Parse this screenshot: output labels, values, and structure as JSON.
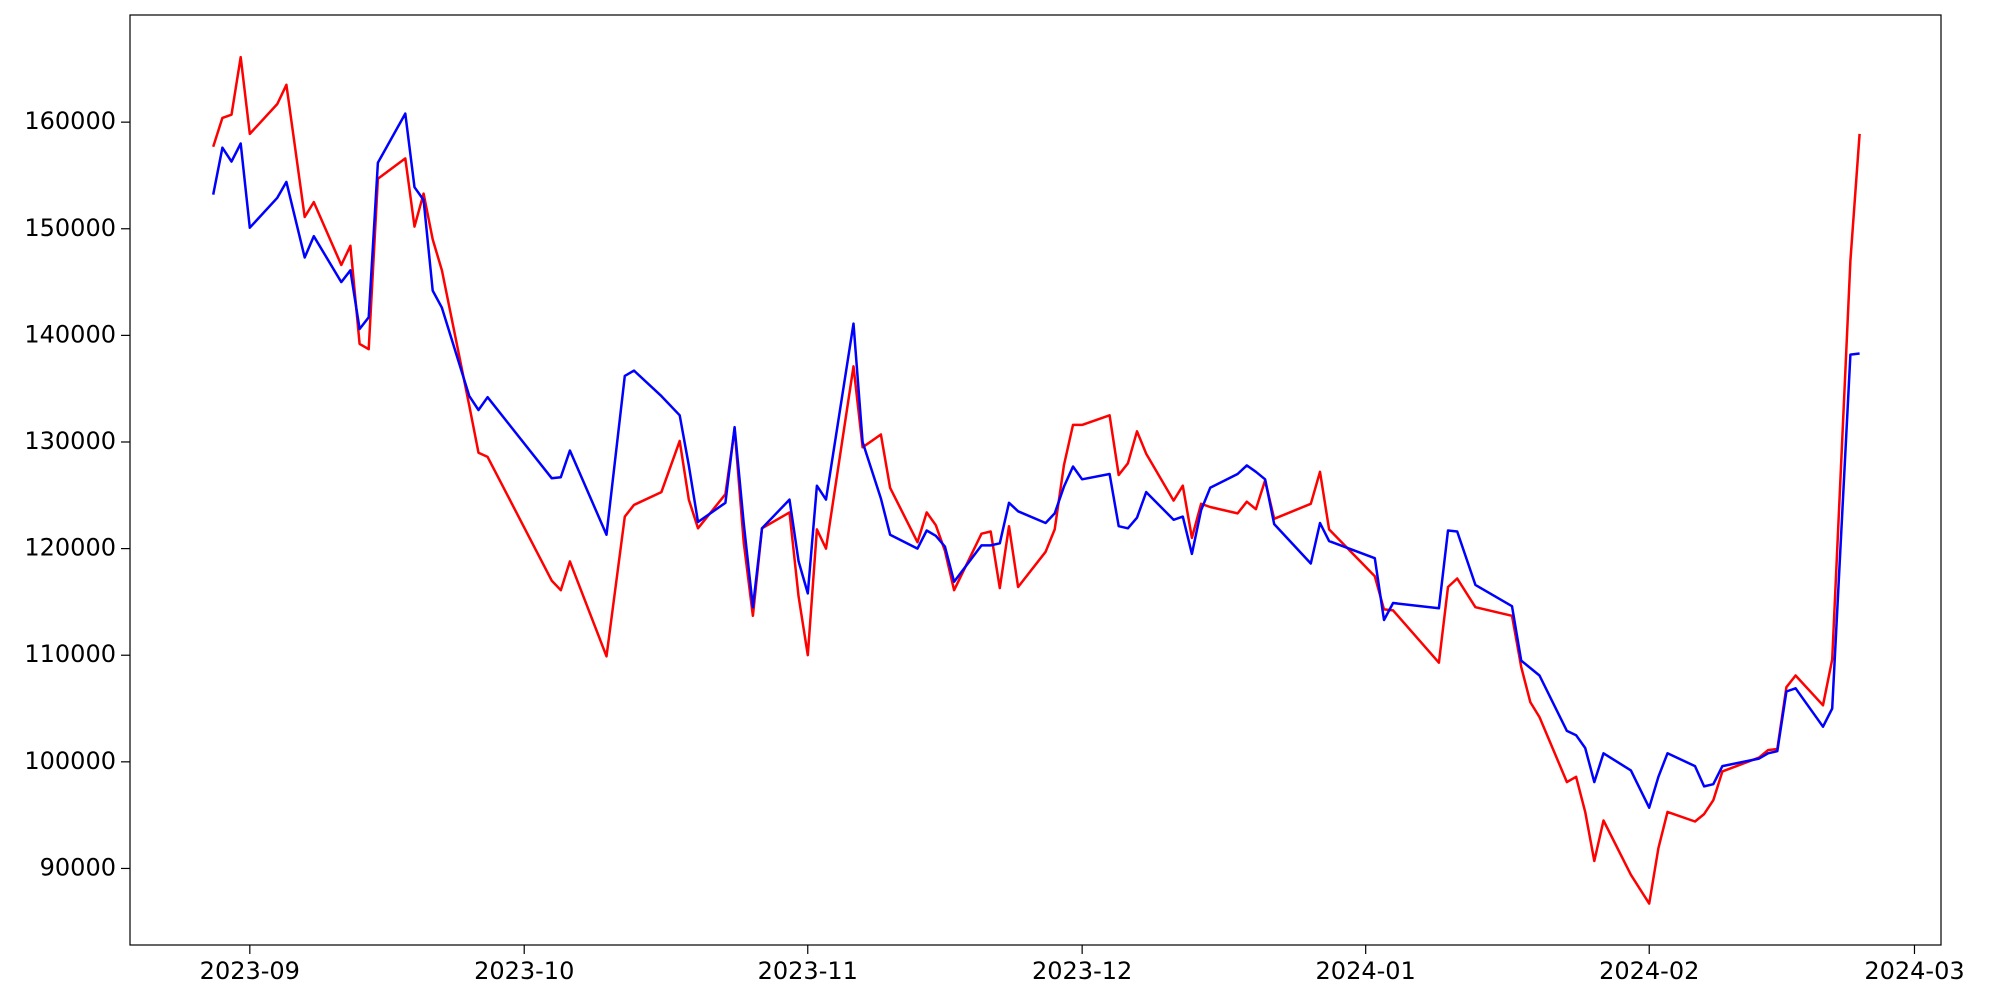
{
  "chart_data": {
    "type": "line",
    "x": [
      -4,
      -3,
      -2,
      -1,
      0,
      3,
      4,
      6,
      7,
      10,
      11,
      12,
      13,
      14,
      17,
      18,
      19,
      20,
      21,
      24,
      25,
      26,
      33,
      34,
      35,
      39,
      41,
      42,
      45,
      47,
      48,
      49,
      52,
      53,
      54,
      55,
      56,
      59,
      60,
      61,
      62,
      63,
      66,
      67,
      69,
      70,
      73,
      74,
      75,
      76,
      77,
      80,
      81,
      82,
      83,
      84,
      87,
      88,
      89,
      90,
      91,
      94,
      95,
      96,
      97,
      98,
      101,
      102,
      103,
      104,
      105,
      108,
      109,
      110,
      111,
      112,
      116,
      117,
      118,
      123,
      124,
      125,
      130,
      131,
      132,
      134,
      138,
      139,
      140,
      141,
      144,
      145,
      146,
      147,
      148,
      151,
      153,
      154,
      155,
      158,
      159,
      160,
      161,
      165,
      166,
      167,
      168,
      169,
      172,
      173,
      175,
      176
    ],
    "series": [
      {
        "name": "red",
        "color": "#ff0000",
        "values": [
          157700,
          160400,
          160700,
          166100,
          158900,
          161700,
          163500,
          151100,
          152500,
          146600,
          148400,
          139200,
          138700,
          154700,
          156600,
          150200,
          153300,
          149000,
          146100,
          133400,
          129000,
          128600,
          117000,
          116100,
          118800,
          109900,
          123000,
          124100,
          125300,
          130100,
          124600,
          121900,
          125100,
          131200,
          120600,
          113700,
          121900,
          123400,
          115500,
          110000,
          121800,
          120000,
          137100,
          129500,
          130700,
          125700,
          120600,
          123400,
          122200,
          119800,
          116100,
          121400,
          121600,
          116300,
          122100,
          116400,
          119700,
          121800,
          127800,
          131600,
          131600,
          132500,
          126900,
          128000,
          131000,
          128900,
          124500,
          125900,
          121000,
          124200,
          123900,
          123300,
          124400,
          123700,
          126400,
          122800,
          124200,
          127200,
          121800,
          117400,
          114300,
          114200,
          109300,
          116400,
          117200,
          114500,
          113700,
          108900,
          105600,
          104200,
          98100,
          98600,
          95300,
          90700,
          94500,
          89400,
          86700,
          91900,
          95300,
          94400,
          95100,
          96400,
          99100,
          100400,
          101100,
          101200,
          107000,
          108100,
          105300,
          109600,
          147000,
          158900
        ]
      },
      {
        "name": "blue",
        "color": "#0000ff",
        "values": [
          153200,
          157600,
          156300,
          158000,
          150100,
          152900,
          154400,
          147300,
          149300,
          145000,
          146100,
          140600,
          141700,
          156200,
          160800,
          153900,
          152700,
          144200,
          142600,
          134300,
          133000,
          134200,
          126600,
          126700,
          129200,
          121300,
          136200,
          136700,
          134300,
          132500,
          127800,
          122500,
          124300,
          131400,
          122400,
          114500,
          121900,
          124600,
          118800,
          115800,
          125900,
          124600,
          141100,
          130000,
          124700,
          121300,
          120000,
          121700,
          121200,
          120200,
          116900,
          120300,
          120300,
          120500,
          124300,
          123500,
          122400,
          123300,
          125800,
          127700,
          126500,
          127000,
          122100,
          121900,
          122900,
          125300,
          122700,
          123000,
          119500,
          123600,
          125700,
          127000,
          127800,
          127200,
          126500,
          122300,
          118600,
          122400,
          120700,
          119100,
          113300,
          114900,
          114400,
          121700,
          121600,
          116600,
          114600,
          109500,
          108800,
          108100,
          102900,
          102500,
          101300,
          98100,
          100800,
          99200,
          95700,
          98600,
          100800,
          99600,
          97700,
          97900,
          99600,
          100300,
          100800,
          101000,
          106600,
          106900,
          103300,
          105000,
          138200,
          138300
        ]
      }
    ],
    "xlim": [
      -13.1,
      184.9
    ],
    "xticks": [
      {
        "value": 0,
        "label": "2023-09"
      },
      {
        "value": 30,
        "label": "2023-10"
      },
      {
        "value": 61,
        "label": "2023-11"
      },
      {
        "value": 91,
        "label": "2023-12"
      },
      {
        "value": 122,
        "label": "2024-01"
      },
      {
        "value": 153,
        "label": "2024-02"
      },
      {
        "value": 182,
        "label": "2024-03"
      }
    ],
    "ylim": [
      82820,
      170050
    ],
    "yticks": [
      90000,
      100000,
      110000,
      120000,
      130000,
      140000,
      150000,
      160000
    ],
    "grid": false
  }
}
